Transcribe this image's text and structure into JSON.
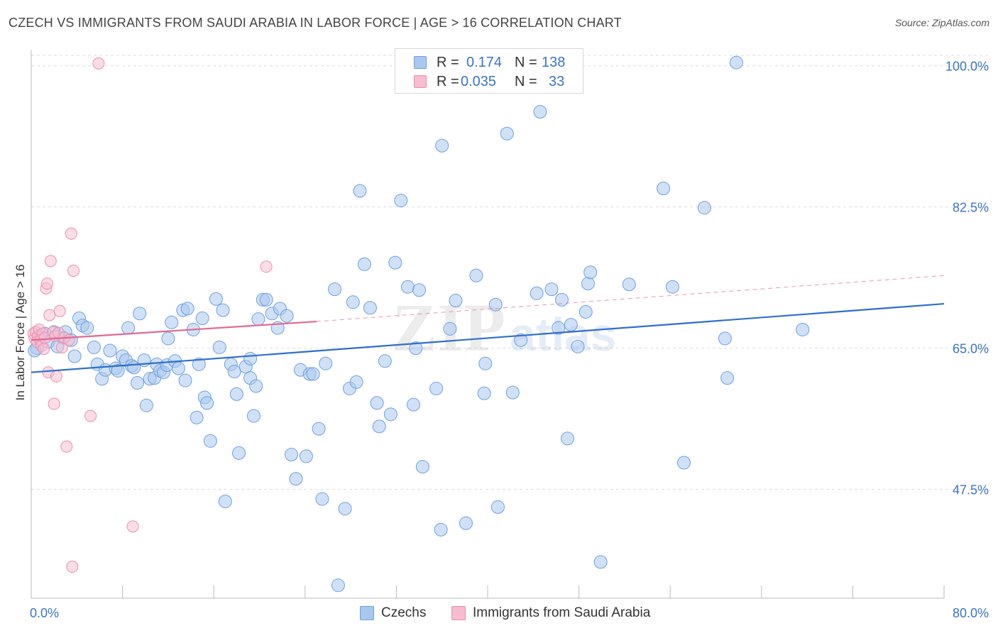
{
  "header": {
    "title": "CZECH VS IMMIGRANTS FROM SAUDI ARABIA IN LABOR FORCE | AGE > 16 CORRELATION CHART",
    "source": "Source: ZipAtlas.com"
  },
  "legend": {
    "rows": [
      {
        "r_label": "R =",
        "r_value": "0.174",
        "n_label": "N =",
        "n_value": "138"
      },
      {
        "r_label": "R =",
        "r_value": "0.035",
        "n_label": "N =",
        "n_value": "33"
      }
    ]
  },
  "watermark": {
    "zip": "ZIP",
    "atlas": "atlas"
  },
  "colors": {
    "czech_fill": "#a9c8f0",
    "czech_stroke": "#6f9fde",
    "czech_line": "#2f6fcc",
    "saudi_fill": "#f7bcd0",
    "saudi_stroke": "#ea8fae",
    "saudi_line": "#e06a93",
    "tick_label": "#3b73c9",
    "grid": "#dddddd"
  },
  "chart_data": {
    "type": "scatter",
    "title": "CZECH VS IMMIGRANTS FROM SAUDI ARABIA IN LABOR FORCE | AGE > 16 CORRELATION CHART",
    "xlabel": "",
    "ylabel": "In Labor Force | Age > 16",
    "xlim": [
      0,
      80
    ],
    "ylim": [
      34,
      102
    ],
    "x_tick_labels": [
      "0.0%",
      "80.0%"
    ],
    "y_ticks": [
      47.5,
      65.0,
      82.5,
      100.0
    ],
    "y_tick_labels": [
      "47.5%",
      "65.0%",
      "82.5%",
      "100.0%"
    ],
    "grid": true,
    "legend_position": "top-center",
    "series": [
      {
        "name": "Czechs",
        "R": 0.174,
        "N": 138,
        "trend": {
          "x": [
            0,
            80
          ],
          "y": [
            62.0,
            70.5
          ],
          "style": "solid"
        },
        "points": [
          [
            0.5,
            65.0
          ],
          [
            0.8,
            66.5
          ],
          [
            1.2,
            66.8
          ],
          [
            1.5,
            65.8
          ],
          [
            2.0,
            67.0
          ],
          [
            2.3,
            65.2
          ],
          [
            2.8,
            66.3
          ],
          [
            3.0,
            67.0
          ],
          [
            3.5,
            66.0
          ],
          [
            3.8,
            64.0
          ],
          [
            4.2,
            68.7
          ],
          [
            4.5,
            67.8
          ],
          [
            4.9,
            67.5
          ],
          [
            5.5,
            65.1
          ],
          [
            5.8,
            63.0
          ],
          [
            6.2,
            61.2
          ],
          [
            6.5,
            62.3
          ],
          [
            6.9,
            64.7
          ],
          [
            7.4,
            62.5
          ],
          [
            7.6,
            62.2
          ],
          [
            8.0,
            64.0
          ],
          [
            8.3,
            63.5
          ],
          [
            8.5,
            67.5
          ],
          [
            8.8,
            62.8
          ],
          [
            9.0,
            62.6
          ],
          [
            9.3,
            60.7
          ],
          [
            9.5,
            69.3
          ],
          [
            9.9,
            63.5
          ],
          [
            10.1,
            57.9
          ],
          [
            10.4,
            61.2
          ],
          [
            10.8,
            61.3
          ],
          [
            11.0,
            63.0
          ],
          [
            11.3,
            62.2
          ],
          [
            11.6,
            62.0
          ],
          [
            11.9,
            62.9
          ],
          [
            12.0,
            66.2
          ],
          [
            12.3,
            68.2
          ],
          [
            12.6,
            63.4
          ],
          [
            12.9,
            62.5
          ],
          [
            13.3,
            69.7
          ],
          [
            13.5,
            61.0
          ],
          [
            13.7,
            69.9
          ],
          [
            14.2,
            67.3
          ],
          [
            14.5,
            56.4
          ],
          [
            14.7,
            63.0
          ],
          [
            15.0,
            68.7
          ],
          [
            15.2,
            58.9
          ],
          [
            15.4,
            58.2
          ],
          [
            15.7,
            53.5
          ],
          [
            16.2,
            71.1
          ],
          [
            16.5,
            65.1
          ],
          [
            16.8,
            69.7
          ],
          [
            17.0,
            46.0
          ],
          [
            17.5,
            63.0
          ],
          [
            17.8,
            62.1
          ],
          [
            18.0,
            59.3
          ],
          [
            18.2,
            52.0
          ],
          [
            18.8,
            62.7
          ],
          [
            19.2,
            61.3
          ],
          [
            19.2,
            63.7
          ],
          [
            19.5,
            56.6
          ],
          [
            19.7,
            60.3
          ],
          [
            19.9,
            68.6
          ],
          [
            20.3,
            71.0
          ],
          [
            20.6,
            71.0
          ],
          [
            21.1,
            69.3
          ],
          [
            21.6,
            67.5
          ],
          [
            21.8,
            69.9
          ],
          [
            22.4,
            69.0
          ],
          [
            22.8,
            51.8
          ],
          [
            23.2,
            48.8
          ],
          [
            23.6,
            62.3
          ],
          [
            24.1,
            51.6
          ],
          [
            24.4,
            61.8
          ],
          [
            24.7,
            61.8
          ],
          [
            25.2,
            55.0
          ],
          [
            25.5,
            46.3
          ],
          [
            25.8,
            63.1
          ],
          [
            26.6,
            72.3
          ],
          [
            26.9,
            35.6
          ],
          [
            27.5,
            45.1
          ],
          [
            27.9,
            60.0
          ],
          [
            28.2,
            70.7
          ],
          [
            28.5,
            60.8
          ],
          [
            28.8,
            84.5
          ],
          [
            29.2,
            75.4
          ],
          [
            29.7,
            70.0
          ],
          [
            30.3,
            58.2
          ],
          [
            30.5,
            55.3
          ],
          [
            31.0,
            63.4
          ],
          [
            31.5,
            56.8
          ],
          [
            31.9,
            75.6
          ],
          [
            32.4,
            83.3
          ],
          [
            33.0,
            72.6
          ],
          [
            33.5,
            58.0
          ],
          [
            33.7,
            65.0
          ],
          [
            34.0,
            72.2
          ],
          [
            34.3,
            50.3
          ],
          [
            35.5,
            60.0
          ],
          [
            35.9,
            42.5
          ],
          [
            36.0,
            90.1
          ],
          [
            36.7,
            67.4
          ],
          [
            37.2,
            70.9
          ],
          [
            38.1,
            43.3
          ],
          [
            39.0,
            74.0
          ],
          [
            39.7,
            59.4
          ],
          [
            39.8,
            63.1
          ],
          [
            40.7,
            70.4
          ],
          [
            40.9,
            45.3
          ],
          [
            41.7,
            91.6
          ],
          [
            42.2,
            59.5
          ],
          [
            42.9,
            66.0
          ],
          [
            44.3,
            71.8
          ],
          [
            44.6,
            94.3
          ],
          [
            45.6,
            72.3
          ],
          [
            46.2,
            67.5
          ],
          [
            46.5,
            71.0
          ],
          [
            47.0,
            53.8
          ],
          [
            47.3,
            67.9
          ],
          [
            47.9,
            65.2
          ],
          [
            48.6,
            69.5
          ],
          [
            48.8,
            73.0
          ],
          [
            49.0,
            74.4
          ],
          [
            49.9,
            38.5
          ],
          [
            52.4,
            72.9
          ],
          [
            55.4,
            84.8
          ],
          [
            56.2,
            72.6
          ],
          [
            57.2,
            50.8
          ],
          [
            59.0,
            82.4
          ],
          [
            60.8,
            66.2
          ],
          [
            61.0,
            61.3
          ],
          [
            61.8,
            100.4
          ],
          [
            67.6,
            67.3
          ],
          [
            0.3,
            64.7
          ]
        ]
      },
      {
        "name": "Immigrants from Saudi Arabia",
        "R": 0.035,
        "N": 33,
        "trend": {
          "x": [
            0,
            25
          ],
          "y": [
            66.0,
            68.3
          ],
          "style": "solid"
        },
        "trend_ext": {
          "x": [
            25,
            80
          ],
          "y": [
            68.3,
            74.0
          ],
          "style": "dashed"
        },
        "points": [
          [
            0.2,
            66.8
          ],
          [
            0.3,
            66.2
          ],
          [
            0.4,
            67.0
          ],
          [
            0.5,
            65.8
          ],
          [
            0.6,
            66.5
          ],
          [
            0.7,
            67.3
          ],
          [
            0.8,
            66.0
          ],
          [
            0.9,
            65.3
          ],
          [
            1.0,
            66.8
          ],
          [
            1.1,
            64.9
          ],
          [
            1.2,
            66.3
          ],
          [
            1.3,
            72.4
          ],
          [
            1.4,
            73.0
          ],
          [
            1.5,
            62.0
          ],
          [
            1.6,
            69.1
          ],
          [
            1.7,
            75.8
          ],
          [
            1.9,
            67.0
          ],
          [
            2.0,
            58.1
          ],
          [
            2.1,
            66.5
          ],
          [
            2.2,
            61.5
          ],
          [
            2.4,
            66.9
          ],
          [
            2.5,
            69.6
          ],
          [
            2.7,
            65.1
          ],
          [
            2.9,
            66.3
          ],
          [
            3.1,
            52.8
          ],
          [
            3.3,
            66.0
          ],
          [
            3.5,
            79.2
          ],
          [
            3.6,
            37.9
          ],
          [
            3.7,
            74.6
          ],
          [
            5.2,
            56.6
          ],
          [
            5.9,
            100.3
          ],
          [
            8.9,
            42.9
          ],
          [
            20.6,
            75.1
          ]
        ]
      }
    ]
  }
}
